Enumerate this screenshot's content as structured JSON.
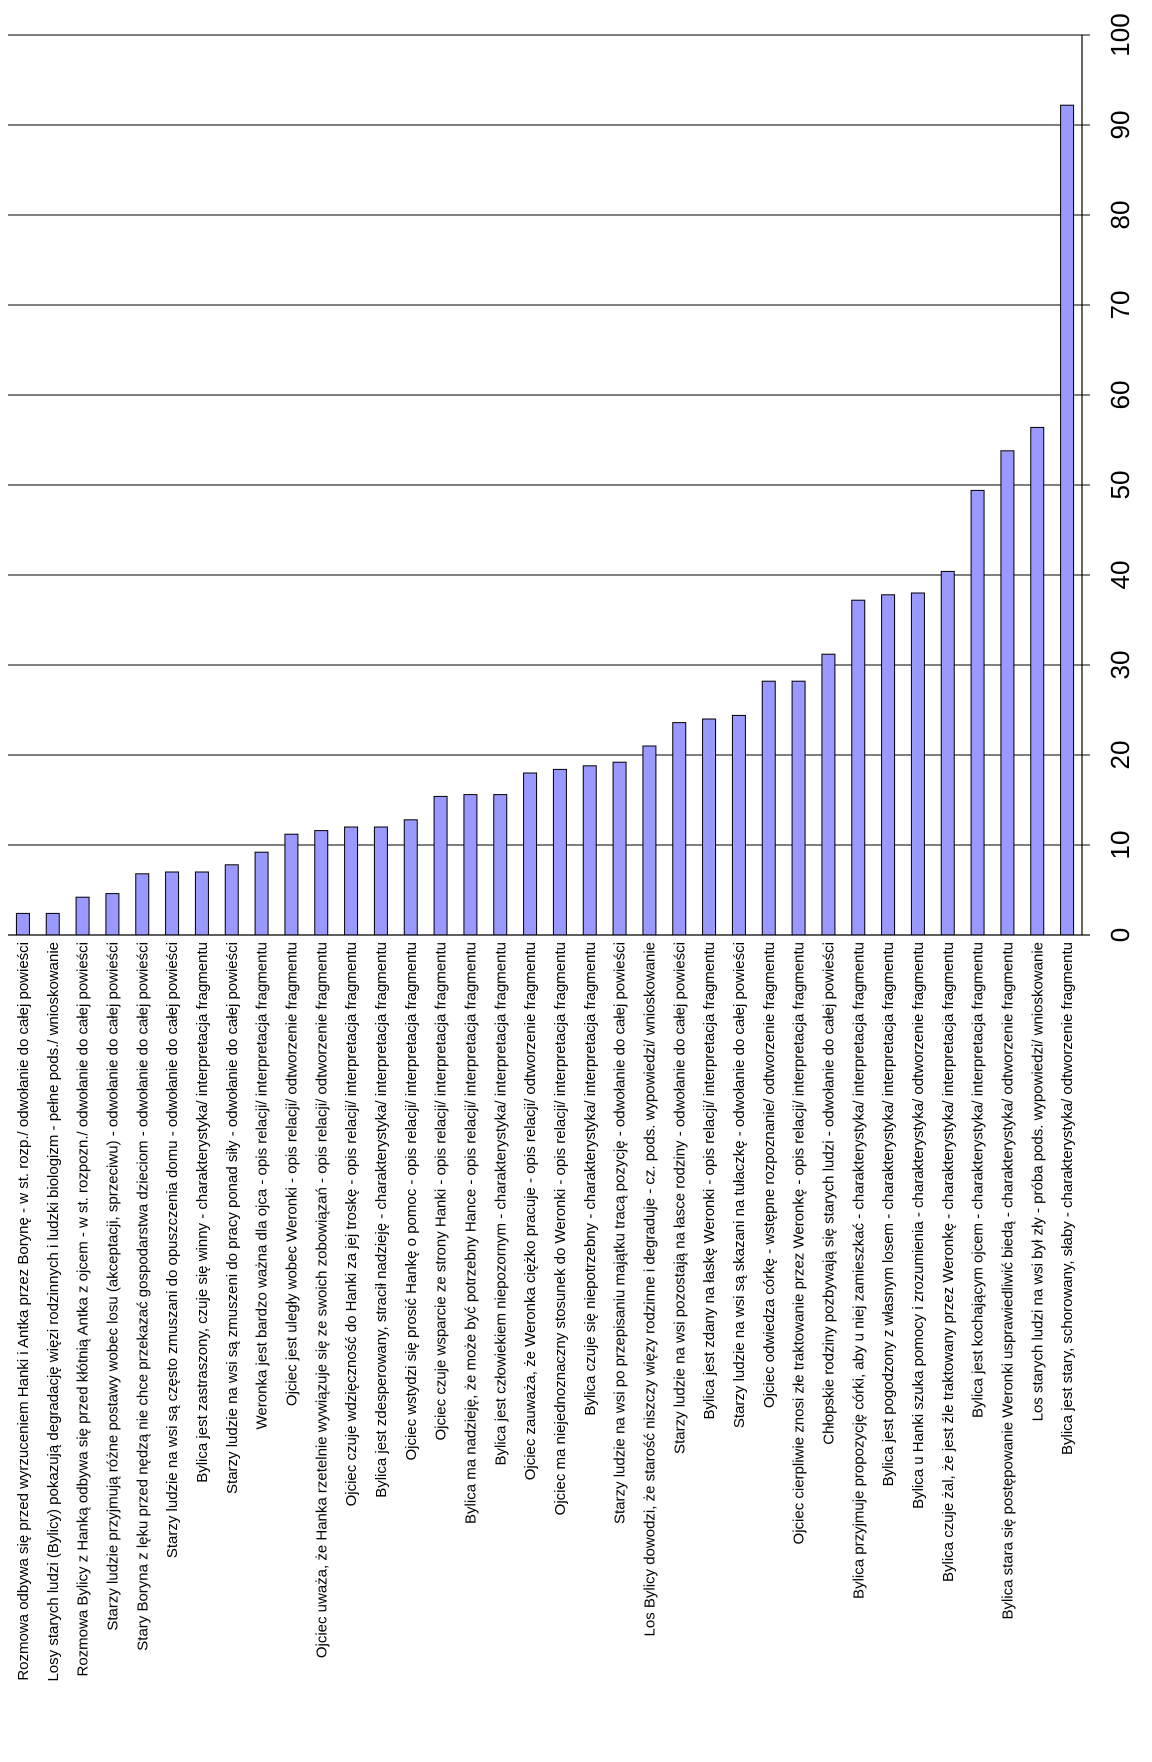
{
  "chart_data": {
    "type": "bar",
    "orientation": "rotated-90",
    "title": "",
    "xlabel": "",
    "ylabel": "",
    "ylim": [
      0,
      100
    ],
    "yticks": [
      "0",
      "10",
      "20",
      "30",
      "40",
      "50",
      "60",
      "70",
      "80",
      "90",
      "100"
    ],
    "grid": true,
    "legend": "none",
    "bar_color": "#9999ff",
    "categories": [
      "Rozmowa odbywa się przed wyrzuceniem Hanki i Antka przez Borynę - w st. rozp./ odwołanie do całej powieści",
      "Losy starych ludzi (Bylicy) pokazują degradację więzi rodzinnych i ludzki biologizm - pełne pods./ wnioskowanie",
      "Rozmowa Bylicy z Hanką odbywa się przed kłótnią Antka z ojcem - w st. rozpozn./ odwołanie do całej powieści",
      "Starzy ludzie przyjmują różne postawy wobec losu (akceptacji, sprzeciwu) - odwołanie do całej powieści",
      "Stary Boryna z lęku przed nędzą nie chce przekazać gospodarstwa dzieciom - odwołanie do całej powieści",
      "Starzy ludzie na wsi są często zmuszani do opuszczenia domu - odwołanie do całej powieści",
      "Bylica jest zastraszony, czuje się winny - charakterystyka/ interpretacja fragmentu",
      "Starzy ludzie na wsi są zmuszeni do pracy ponad siły - odwołanie do całej powieści",
      "Weronka jest bardzo ważna dla ojca - opis relacji/ interpretacja fragmentu",
      "Ojciec jest uległy wobec Weronki - opis relacji/ odtworzenie fragmentu",
      "Ojciec uważa, że Hanka rzetelnie wywiązuje się ze swoich zobowiązań - opis relacji/ odtworzenie fragmentu",
      "Ojciec czuje wdzięczność do Hanki za jej troskę - opis relacji/ interpretacja fragmentu",
      "Bylica jest zdesperowany, stracił nadzieję - charakterystyka/ interpretacja fragmentu",
      "Ojciec wstydzi się prosić Hankę o pomoc - opis relacji/ interpretacja fragmentu",
      "Ojciec czuje wsparcie ze strony Hanki - opis relacji/ interpretacja fragmentu",
      "Bylica ma nadzieję, że może być potrzebny Hance - opis relacji/ interpretacja fragmentu",
      "Bylica jest człowiekiem niepozornym - charakterystyka/ interpretacja fragmentu",
      "Ojciec zauważa, że Weronka ciężko pracuje - opis relacji/ odtworzenie fragmentu",
      "Ojciec ma niejednoznaczny stosunek do Weronki - opis relacji/ interpretacja fragmentu",
      "Bylica czuje się niepotrzebny - charakterystyka/ interpretacja fragmentu",
      "Starzy ludzie na wsi po przepisaniu majątku tracą pozycję - odwołanie do całej powieści",
      "Los Bylicy dowodzi, że starość niszczy więzy rodzinne i degraduje - cz. pods. wypowiedzi/ wnioskowanie",
      "Starzy ludzie na wsi pozostają na łasce rodziny - odwołanie do całej powieści",
      "Bylica jest zdany na łaskę Weronki - opis relacji/ interpretacja fragmentu",
      "Starzy ludzie na wsi są skazani na tułaczkę - odwołanie do całej powieści",
      "Ojciec odwiedza córkę - wstępne rozpoznanie/ odtworzenie fragmentu",
      "Ojciec cierpliwie znosi złe traktowanie przez Weronkę - opis relacji/ interpretacja fragmentu",
      "Chłopskie rodziny pozbywają się starych ludzi - odwołanie do całej powieści",
      "Bylica przyjmuje propozycję córki, aby u niej zamieszkać - charakterystyka/ interpretacja fragmentu",
      "Bylica jest pogodzony z własnym losem - charakterystyka/ interpretacja fragmentu",
      "Bylica u Hanki szuka pomocy i zrozumienia - charakterystyka/ odtworzenie fragmentu",
      "Bylica czuje żal, że jest źle traktowany przez Weronkę - charakterystyka/ interpretacja fragmentu",
      "Bylica jest kochającym ojcem - charakterystyka/ interpretacja fragmentu",
      "Bylica stara się postępowanie Weronki usprawiedliwić biedą - charakterystyka/ odtworzenie fragmentu",
      "Los starych ludzi na wsi był zły - próba pods. wypowiedzi/ wnioskowanie",
      "Bylica jest stary, schorowany, słaby - charakterystyka/ odtworzenie fragmentu"
    ],
    "values": [
      2.4,
      2.4,
      4.2,
      4.6,
      6.8,
      7.0,
      7.0,
      7.8,
      9.2,
      11.2,
      11.6,
      12.0,
      12.0,
      12.8,
      15.4,
      15.6,
      15.6,
      18.0,
      18.4,
      18.8,
      19.2,
      21.0,
      23.6,
      24.0,
      24.4,
      28.2,
      28.2,
      31.2,
      37.2,
      37.8,
      38.0,
      40.4,
      49.4,
      53.8,
      56.4,
      92.2
    ]
  }
}
